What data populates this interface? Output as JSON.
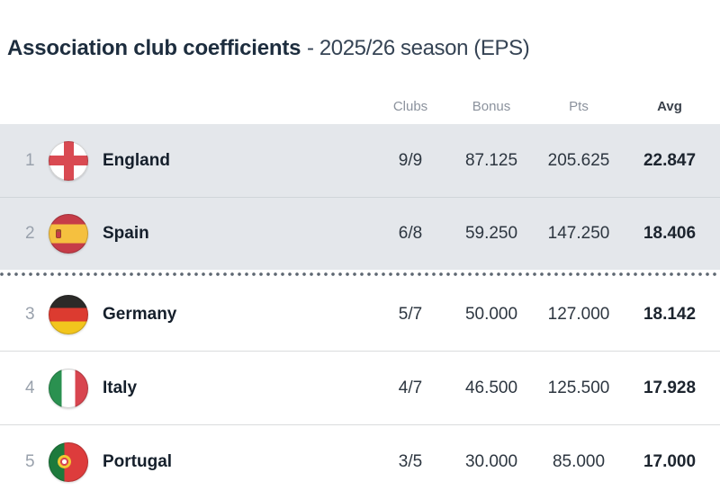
{
  "title": {
    "main": "Association club coefficients",
    "secondary": "- 2025/26 season (EPS)"
  },
  "table": {
    "headers": {
      "clubs": "Clubs",
      "bonus": "Bonus",
      "pts": "Pts",
      "avg": "Avg"
    },
    "rows": [
      {
        "rank": "1",
        "country": "England",
        "flag": "england-flag",
        "clubs": "9/9",
        "bonus": "87.125",
        "pts": "205.625",
        "avg": "22.847",
        "highlighted": true
      },
      {
        "rank": "2",
        "country": "Spain",
        "flag": "spain-flag",
        "clubs": "6/8",
        "bonus": "59.250",
        "pts": "147.250",
        "avg": "18.406",
        "highlighted": true
      },
      {
        "rank": "3",
        "country": "Germany",
        "flag": "germany-flag",
        "clubs": "5/7",
        "bonus": "50.000",
        "pts": "127.000",
        "avg": "18.142",
        "highlighted": false
      },
      {
        "rank": "4",
        "country": "Italy",
        "flag": "italy-flag",
        "clubs": "4/7",
        "bonus": "46.500",
        "pts": "125.500",
        "avg": "17.928",
        "highlighted": false
      },
      {
        "rank": "5",
        "country": "Portugal",
        "flag": "portugal-flag",
        "clubs": "3/5",
        "bonus": "30.000",
        "pts": "85.000",
        "avg": "17.000",
        "highlighted": false
      }
    ],
    "cutoff_after_rank": "2"
  },
  "colors": {
    "title_text": "#1d2d3e",
    "header_label": "#8b929d",
    "highlight_row_bg": "#e4e7eb",
    "row_divider": "#dadcdd",
    "dotted_separator": "#5d6771",
    "rank_text": "#99a1ac",
    "value_text": "#2d3640"
  }
}
